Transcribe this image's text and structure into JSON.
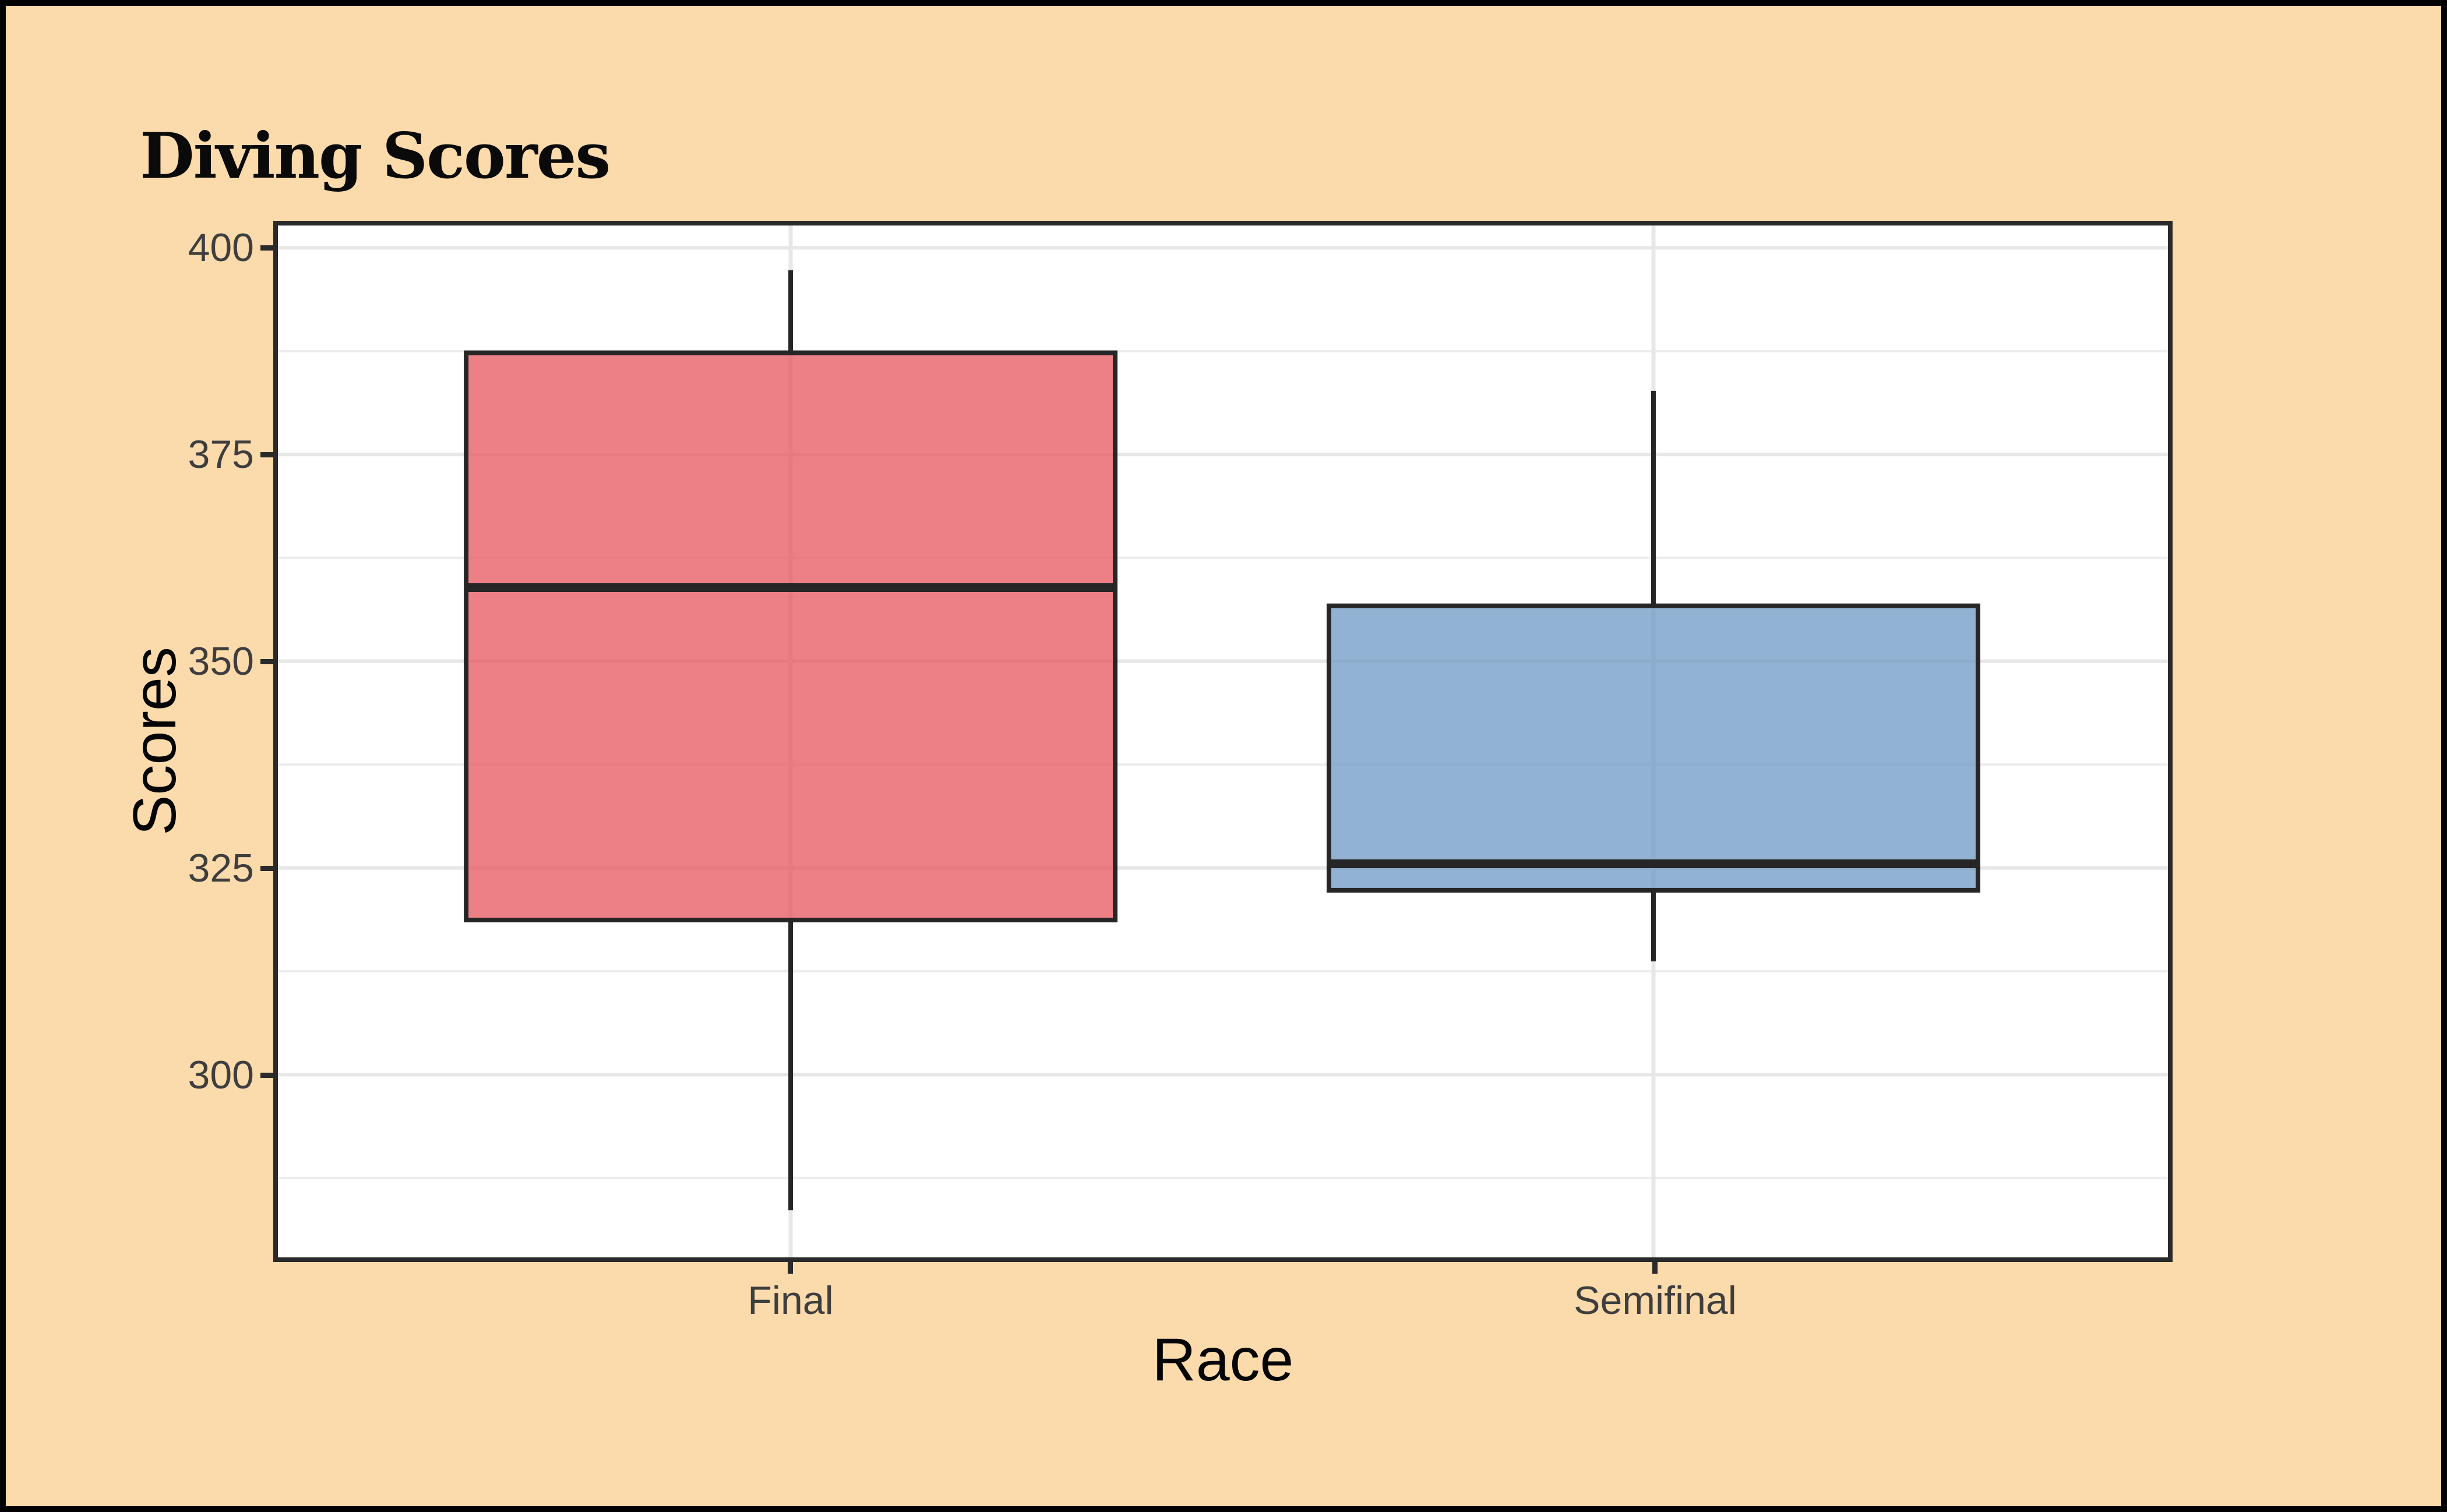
{
  "title": "Diving Scores",
  "y_axis": {
    "label": "Scores",
    "tick_labels": [
      "400",
      "375",
      "350",
      "325",
      "300"
    ]
  },
  "x_axis": {
    "label": "Race",
    "category_labels": [
      "Final",
      "Semifinal"
    ]
  },
  "colors": {
    "page_background": "#FBDAAB",
    "panel_background": "#FFFFFF",
    "panel_border": "#2A2A2A",
    "outer_border": "#000000",
    "grid_major": "#E7E7E7",
    "grid_minor": "#EDEDED",
    "box_outline": "#262626",
    "final_fill_rgba": "rgba(231,84,95,0.75)",
    "semifinal_fill_rgba": "rgba(110,152,196,0.75)",
    "tick_text": "#3E3E3E",
    "axis_title_text": "#050505"
  },
  "chart_data": {
    "type": "boxplot",
    "title": "Diving Scores",
    "xlabel": "Race",
    "ylabel": "Scores",
    "categories": [
      "Final",
      "Semifinal"
    ],
    "series": [
      {
        "name": "Final",
        "min": 283.6,
        "q1": 318.7,
        "median": 358.9,
        "q3": 387.3,
        "max": 397.3,
        "fill": "rgba(231,84,95,0.75)"
      },
      {
        "name": "Semifinal",
        "min": 313.7,
        "q1": 322.3,
        "median": 325.5,
        "q3": 356.7,
        "max": 382.7,
        "fill": "rgba(110,152,196,0.75)"
      }
    ],
    "ylim": [
      277.9,
      402.7
    ],
    "y_ticks": [
      300,
      325,
      350,
      375,
      400
    ],
    "y_minor_ticks": [
      287.5,
      312.5,
      337.5,
      362.5,
      387.5
    ],
    "grid": "horizontal major+minor, vertical major at categories",
    "legend": "none"
  }
}
